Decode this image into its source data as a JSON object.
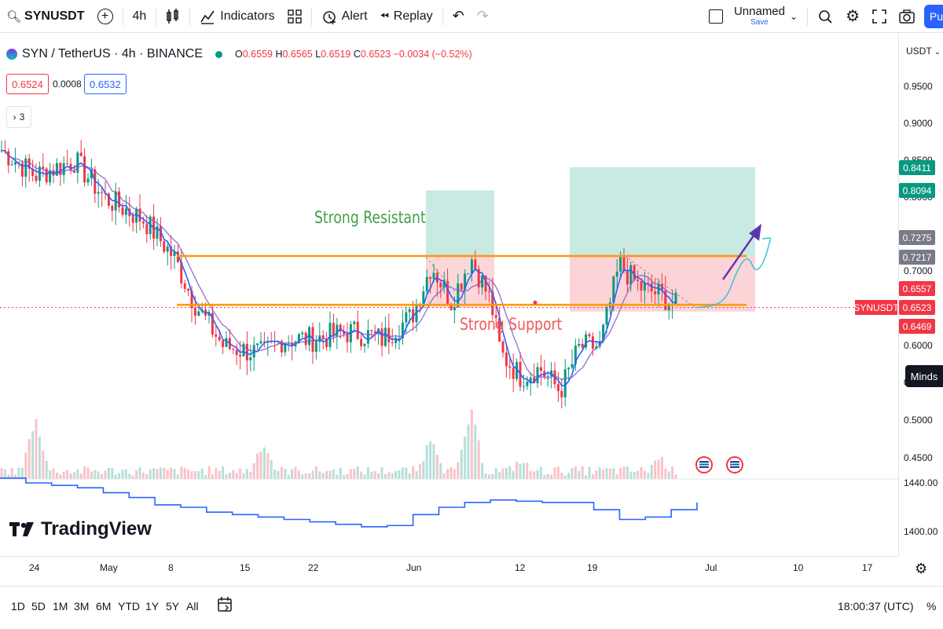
{
  "toolbar": {
    "symbol": "SYNUSDT",
    "interval": "4h",
    "indicators_label": "Indicators",
    "alert_label": "Alert",
    "replay_label": "Replay",
    "layout_name": "Unnamed",
    "layout_save": "Save",
    "publish_label": "Pu"
  },
  "legend": {
    "title": "SYN / TetherUS · 4h · BINANCE",
    "o_label": "O",
    "o": "0.6559",
    "h_label": "H",
    "h": "0.6565",
    "l_label": "L",
    "l": "0.6519",
    "c_label": "C",
    "c": "0.6523",
    "change": "−0.0034 (−0.52%)",
    "bid": "0.6524",
    "spread": "0.0008",
    "ask": "0.6532",
    "indicator_count": "3"
  },
  "price_axis": {
    "currency": "USDT",
    "ticks": [
      "0.9500",
      "0.9000",
      "0.8500",
      "0.8000",
      "0.7500",
      "0.7000",
      "0.6500",
      "0.6000",
      "0.5500",
      "0.5000",
      "0.4500",
      "1440.00",
      "1400.00"
    ],
    "labels": [
      {
        "text": "0.8411",
        "color": "#089981"
      },
      {
        "text": "0.8094",
        "color": "#089981"
      },
      {
        "text": "0.7275",
        "color": "#787b86"
      },
      {
        "text": "0.7217",
        "color": "#787b86"
      },
      {
        "text": "0.6557",
        "color": "#f23645"
      },
      {
        "text": "0.6523",
        "color": "#f23645"
      },
      {
        "text": "0.6469",
        "color": "#f23645"
      }
    ],
    "symbol_tag": "SYNUSDT",
    "minds_label": "Minds"
  },
  "time_axis": {
    "ticks": [
      "24",
      "May",
      "8",
      "15",
      "22",
      "Jun",
      "12",
      "19",
      "Jul",
      "10",
      "17"
    ]
  },
  "annotations": {
    "resistance_text": "Strong Resistant",
    "support_text": "Strong Support"
  },
  "watermark": "TradingView",
  "bottom_bar": {
    "ranges": [
      "1D",
      "5D",
      "1M",
      "3M",
      "6M",
      "YTD",
      "1Y",
      "5Y",
      "All"
    ],
    "time": "18:00:37 (UTC)",
    "scale_mode": "%"
  },
  "chart_data": {
    "type": "candlestick",
    "title": "SYN / TetherUS · 4h · BINANCE",
    "y_range": [
      0.43,
      0.98
    ],
    "last_price": 0.6523,
    "resistance_level": 0.7217,
    "support_level": 0.6523,
    "trend_points": [
      {
        "date": "Apr 20",
        "close": 0.87
      },
      {
        "date": "Apr 24",
        "close": 0.83
      },
      {
        "date": "Apr 28",
        "close": 0.85
      },
      {
        "date": "May 1",
        "close": 0.8
      },
      {
        "date": "May 5",
        "close": 0.77
      },
      {
        "date": "May 8",
        "close": 0.72
      },
      {
        "date": "May 10",
        "close": 0.66
      },
      {
        "date": "May 13",
        "close": 0.6
      },
      {
        "date": "May 17",
        "close": 0.59
      },
      {
        "date": "May 19",
        "close": 0.61
      },
      {
        "date": "May 22",
        "close": 0.61
      },
      {
        "date": "May 26",
        "close": 0.62
      },
      {
        "date": "May 29",
        "close": 0.61
      },
      {
        "date": "Jun 1",
        "close": 0.64
      },
      {
        "date": "Jun 3",
        "close": 0.71
      },
      {
        "date": "Jun 5",
        "close": 0.66
      },
      {
        "date": "Jun 7",
        "close": 0.72
      },
      {
        "date": "Jun 9",
        "close": 0.66
      },
      {
        "date": "Jun 10",
        "close": 0.59
      },
      {
        "date": "Jun 12",
        "close": 0.56
      },
      {
        "date": "Jun 14",
        "close": 0.57
      },
      {
        "date": "Jun 16",
        "close": 0.54
      },
      {
        "date": "Jun 18",
        "close": 0.6
      },
      {
        "date": "Jun 20",
        "close": 0.6
      },
      {
        "date": "Jun 22",
        "close": 0.71
      },
      {
        "date": "Jun 24",
        "close": 0.68
      },
      {
        "date": "Jun 26",
        "close": 0.67
      },
      {
        "date": "Jun 28",
        "close": 0.6523
      }
    ],
    "volume_levels": [
      {
        "date": "Apr 24",
        "volume": 0.8
      },
      {
        "date": "May 17",
        "volume": 0.45
      },
      {
        "date": "Jun 3",
        "volume": 0.55
      },
      {
        "date": "Jun 7",
        "volume": 0.9
      },
      {
        "date": "Jun 12",
        "volume": 0.2
      },
      {
        "date": "Jun 26",
        "volume": 0.25
      }
    ],
    "oscillator_range": [
      1390,
      1445
    ],
    "oscillator_points": [
      1444,
      1440,
      1438,
      1436,
      1432,
      1428,
      1422,
      1420,
      1416,
      1414,
      1412,
      1410,
      1408,
      1406,
      1404,
      1405,
      1414,
      1420,
      1424,
      1426,
      1425,
      1424,
      1424,
      1418,
      1410,
      1412,
      1418,
      1424
    ]
  }
}
